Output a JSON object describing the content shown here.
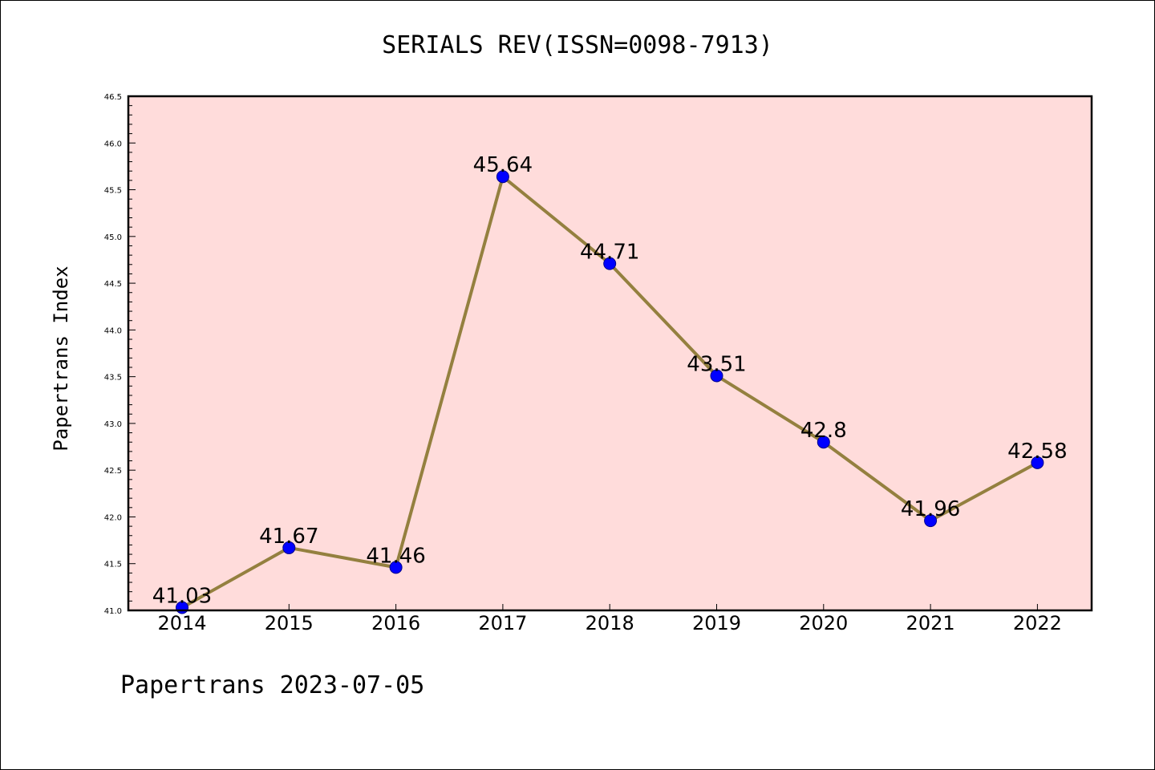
{
  "chart_data": {
    "type": "line",
    "title": "SERIALS REV(ISSN=0098-7913)",
    "ylabel": "Papertrans Index",
    "xlabel": "",
    "categories": [
      "2014",
      "2015",
      "2016",
      "2017",
      "2018",
      "2019",
      "2020",
      "2021",
      "2022"
    ],
    "values": [
      41.03,
      41.67,
      41.46,
      45.64,
      44.71,
      43.51,
      42.8,
      41.96,
      42.58
    ],
    "data_labels": [
      "41.03",
      "41.67",
      "41.46",
      "45.64",
      "44.71",
      "43.51",
      "42.8",
      "41.96",
      "42.58"
    ],
    "ylim": [
      41.0,
      46.5
    ],
    "yticks": [
      "41.0",
      "41.5",
      "42.0",
      "42.5",
      "43.0",
      "43.5",
      "44.0",
      "44.5",
      "45.0",
      "45.5",
      "46.0",
      "46.5"
    ],
    "grid": false,
    "colors": {
      "plot_background": "#ffdcdb",
      "line": "#94803f",
      "marker": "#0000ff",
      "marker_edge": "#00008b"
    }
  },
  "footer": "Papertrans 2023-07-05"
}
